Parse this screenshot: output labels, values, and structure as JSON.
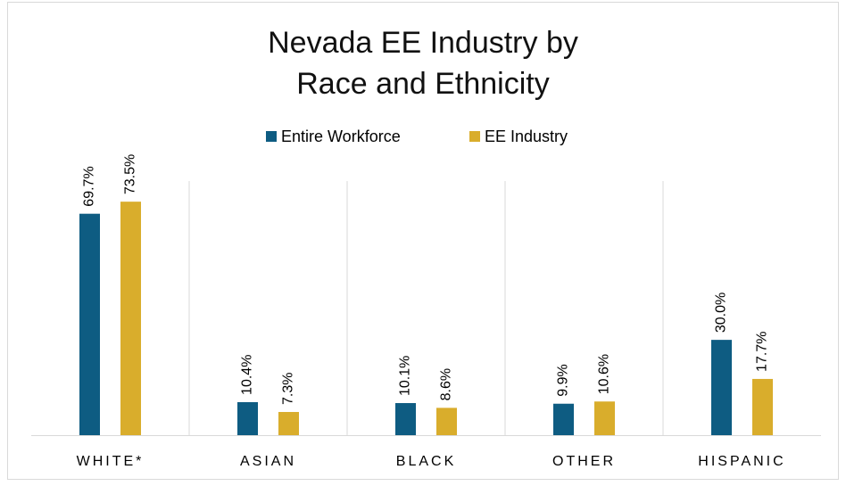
{
  "chart_data": {
    "type": "bar",
    "title": [
      "Nevada EE Industry by",
      "Race and Ethnicity"
    ],
    "categories": [
      "WHITE*",
      "ASIAN",
      "BLACK",
      "OTHER",
      "HISPANIC"
    ],
    "series": [
      {
        "name": "Entire Workforce",
        "color": "#0e5c82",
        "values": [
          69.7,
          10.4,
          10.1,
          9.9,
          30.0
        ],
        "value_labels": [
          "69.7%",
          "10.4%",
          "10.1%",
          "9.9%",
          "30.0%"
        ]
      },
      {
        "name": "EE Industry",
        "color": "#d9ad2c",
        "values": [
          73.5,
          7.3,
          8.6,
          10.6,
          17.7
        ],
        "value_labels": [
          "73.5%",
          "7.3%",
          "8.6%",
          "10.6%",
          "17.7%"
        ]
      }
    ],
    "ylim": [
      0,
      80
    ],
    "legend": "top"
  }
}
